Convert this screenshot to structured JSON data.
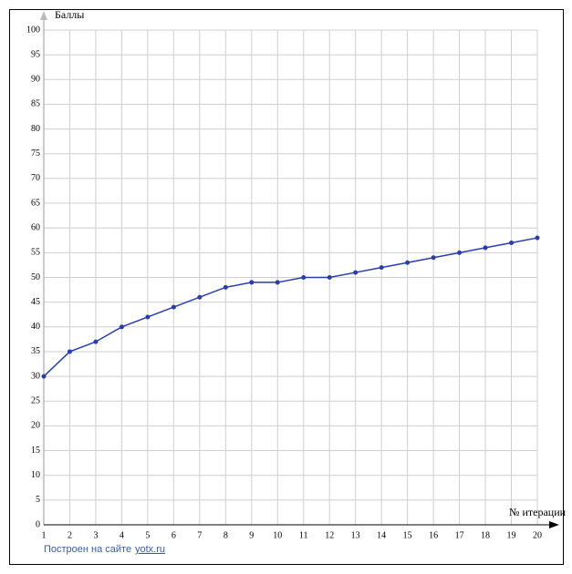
{
  "chart_data": {
    "type": "line",
    "y_label": "Баллы",
    "x_label": "№ итерации",
    "x": [
      1,
      2,
      3,
      4,
      5,
      6,
      7,
      8,
      9,
      10,
      11,
      12,
      13,
      14,
      15,
      16,
      17,
      18,
      19,
      20
    ],
    "series": [
      {
        "color": "#2a3db0",
        "values": [
          30,
          35,
          37,
          40,
          42,
          44,
          46,
          48,
          49,
          49,
          50,
          50,
          51,
          52,
          53,
          54,
          55,
          56,
          57,
          58
        ]
      }
    ],
    "xlim": [
      1,
      20
    ],
    "xticks": [
      1,
      2,
      3,
      4,
      5,
      6,
      7,
      8,
      9,
      10,
      11,
      12,
      13,
      14,
      15,
      16,
      17,
      18,
      19,
      20
    ],
    "ylim": [
      0,
      100
    ],
    "yticks": [
      0,
      5,
      10,
      15,
      20,
      25,
      30,
      35,
      40,
      45,
      50,
      55,
      60,
      65,
      70,
      75,
      80,
      85,
      90,
      95,
      100
    ],
    "grid": true
  },
  "footer": {
    "text": "Построен на сайте",
    "link": "yotx.ru"
  }
}
